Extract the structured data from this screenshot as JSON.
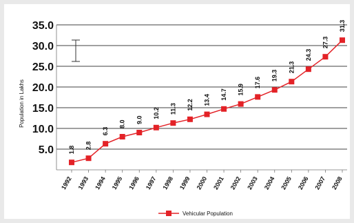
{
  "chart_data": {
    "type": "line",
    "title": "",
    "xlabel": "",
    "ylabel": "Population in Lakhs",
    "categories": [
      "1992",
      "1993",
      "1994",
      "1995",
      "1996",
      "1997",
      "1998",
      "1999",
      "2000",
      "2001",
      "2002",
      "2003",
      "2004",
      "2005",
      "2006",
      "2007",
      "2008"
    ],
    "series": [
      {
        "name": "Vehicular Population",
        "values": [
          1.8,
          2.8,
          6.3,
          8.0,
          9.0,
          10.2,
          11.3,
          12.2,
          13.4,
          14.7,
          15.9,
          17.6,
          19.3,
          21.3,
          24.3,
          27.3,
          31.3
        ],
        "labels": [
          "1.8",
          "2.8",
          "6.3",
          "8.0",
          "9.0",
          "10.2",
          "11.3",
          "12.2",
          "13.4",
          "14.7",
          "15.9",
          "17.6",
          "19.3",
          "21.3",
          "24.3",
          "27.3",
          "31.3"
        ]
      }
    ],
    "yticks": [
      "5.0",
      "10.0",
      "15.0",
      "20.0",
      "25.0",
      "30.0",
      "35.0"
    ],
    "ylim": [
      0,
      35
    ],
    "grid": true,
    "legend_position": "bottom",
    "colors": {
      "series": "#e32227",
      "grid": "#000000",
      "axis": "#777777"
    }
  }
}
